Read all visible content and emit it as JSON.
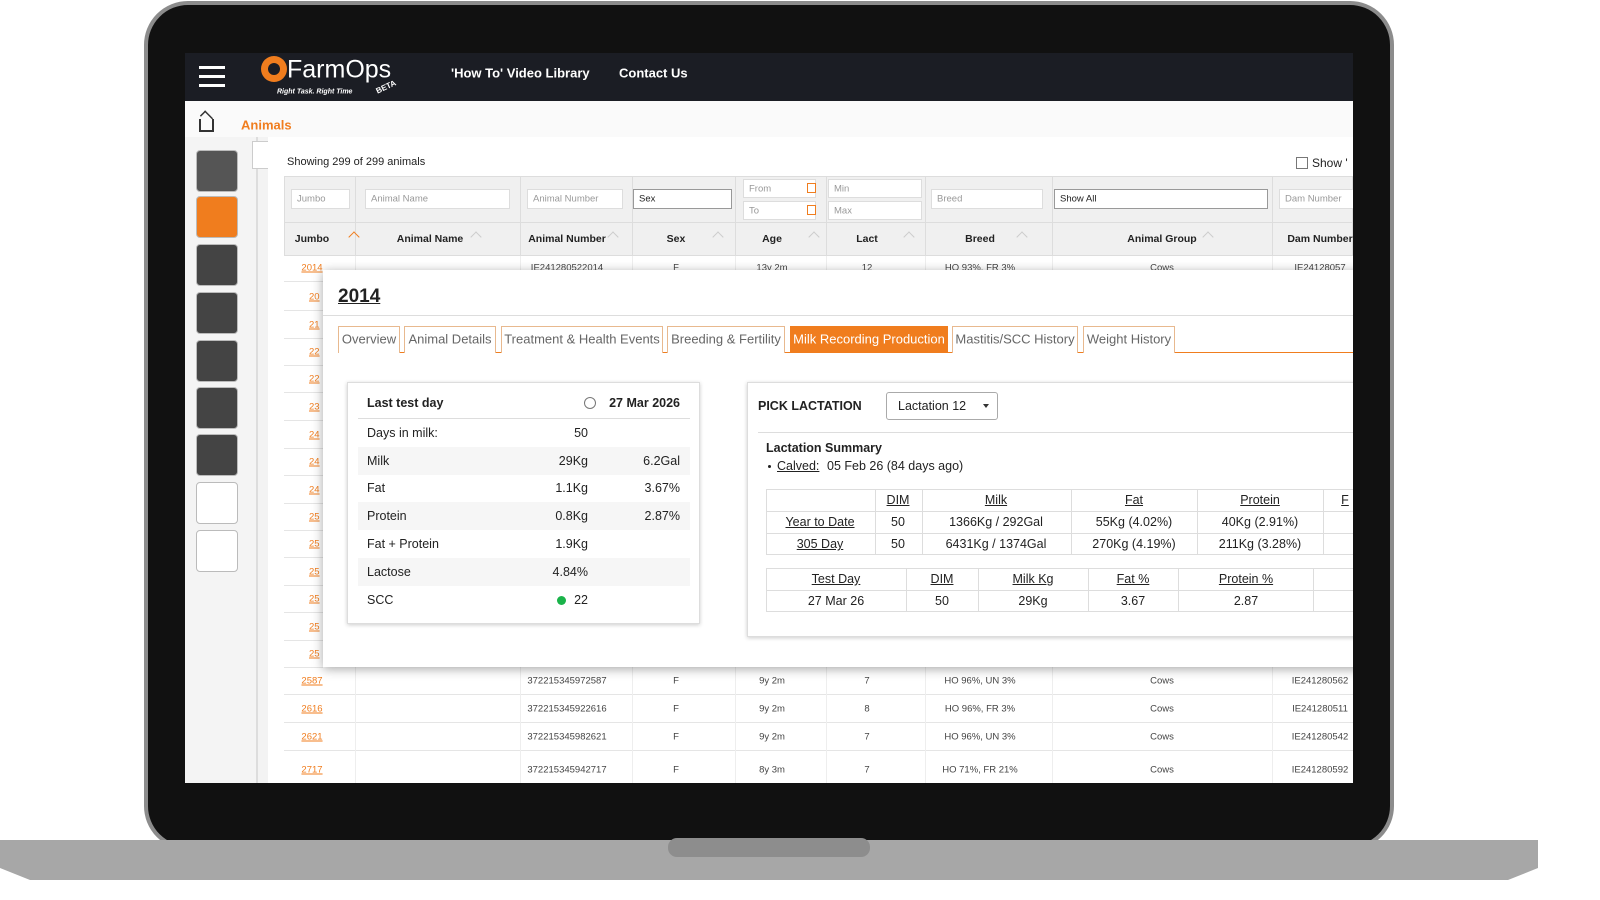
{
  "header": {
    "brand": "FarmOps",
    "tagline": "Right Task. Right Time",
    "badge": "BETA",
    "nav": [
      "'How To' Video Library",
      "Contact Us"
    ]
  },
  "breadcrumb": {
    "current": "Animals"
  },
  "list": {
    "summary": "Showing 299 of 299 animals",
    "show_toggle": "Show '",
    "filters": [
      "Jumbo",
      "Animal Name",
      "Animal Number",
      "Sex",
      "From",
      "To",
      "Min",
      "Max",
      "Breed",
      "Show All",
      "Dam Number"
    ],
    "columns": [
      "Jumbo",
      "Animal Name",
      "Animal Number",
      "Sex",
      "Age",
      "Lact",
      "Breed",
      "Animal Group",
      "Dam Number"
    ],
    "top_row": [
      "2014",
      "IE241280522014",
      "F",
      "13y 2m",
      "12",
      "HO 93%, FR 3%",
      "Cows",
      "IE24128057"
    ],
    "row_stubs": [
      "20",
      "21",
      "22",
      "22",
      "23",
      "24",
      "24",
      "24",
      "25",
      "25",
      "25",
      "25",
      "25",
      "25"
    ],
    "rows": [
      [
        "2587",
        "372215345972587",
        "F",
        "9y 2m",
        "7",
        "HO 96%, UN 3%",
        "Cows",
        "IE241280562"
      ],
      [
        "2616",
        "372215345922616",
        "F",
        "9y 2m",
        "8",
        "HO 96%, FR 3%",
        "Cows",
        "IE241280511"
      ],
      [
        "2621",
        "372215345982621",
        "F",
        "9y 2m",
        "7",
        "HO 96%, UN 3%",
        "Cows",
        "IE241280542"
      ],
      [
        "2717",
        "372215345942717",
        "F",
        "8y 3m",
        "7",
        "HO 71%, FR 21%",
        "Cows",
        "IE241280592"
      ]
    ]
  },
  "modal": {
    "title": "2014",
    "tabs": [
      "Overview",
      "Animal Details",
      "Treatment & Health Events",
      "Breeding & Fertility",
      "Milk Recording Production",
      "Mastitis/SCC History",
      "Weight History"
    ],
    "last_test": {
      "title": "Last test day",
      "date": "27 Mar 2026",
      "rows": [
        [
          "Days in milk:",
          "50",
          ""
        ],
        [
          "Milk",
          "29Kg",
          "6.2Gal"
        ],
        [
          "Fat",
          "1.1Kg",
          "3.67%"
        ],
        [
          "Protein",
          "0.8Kg",
          "2.87%"
        ],
        [
          "Fat + Protein",
          "1.9Kg",
          ""
        ],
        [
          "Lactose",
          "4.84%",
          ""
        ],
        [
          "SCC",
          "22",
          ""
        ]
      ]
    },
    "lactation": {
      "label": "PICK LACTATION",
      "selected": "Lactation 12",
      "summary_title": "Lactation Summary",
      "calved_label": "Calved:",
      "calved_value": "05 Feb 26 (84 days ago)",
      "summary_headers": [
        "DIM",
        "Milk",
        "Fat",
        "Protein",
        "F"
      ],
      "summary_rows": [
        [
          "Year to Date",
          "50",
          "1366Kg / 292Gal",
          "55Kg (4.02%)",
          "40Kg (2.91%)"
        ],
        [
          "305 Day",
          "50",
          "6431Kg / 1374Gal",
          "270Kg (4.19%)",
          "211Kg (3.28%)"
        ]
      ],
      "test_headers": [
        "Test Day",
        "DIM",
        "Milk Kg",
        "Fat %",
        "Protein %"
      ],
      "test_row": [
        "27 Mar 26",
        "50",
        "29Kg",
        "3.67",
        "2.87"
      ]
    }
  }
}
